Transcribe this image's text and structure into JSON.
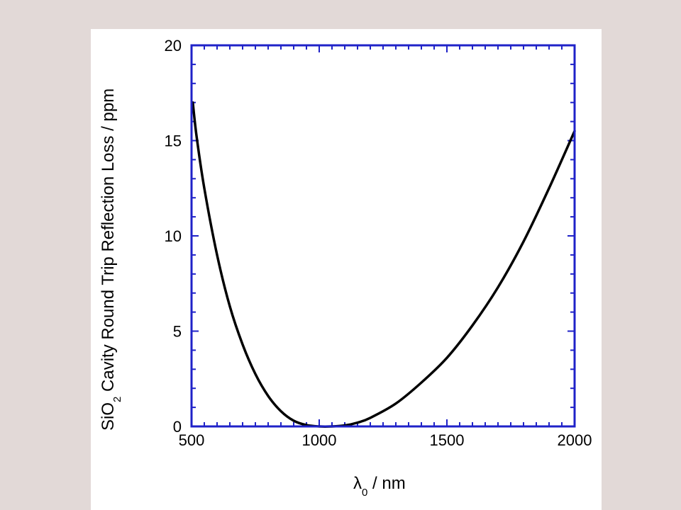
{
  "chart_data": {
    "type": "line",
    "title": "",
    "xlabel": {
      "symbol": "λ",
      "subscript": "0",
      "suffix": " / nm"
    },
    "ylabel": {
      "prefix": "SiO",
      "subscript": "2",
      "suffix": " Cavity Round Trip Reflection Loss / ppm"
    },
    "xlim": [
      500,
      2000
    ],
    "ylim": [
      0,
      20
    ],
    "x_ticks": [
      500,
      1000,
      1500,
      2000
    ],
    "y_ticks": [
      0,
      5,
      10,
      15,
      20
    ],
    "x_tick_labels": [
      "500",
      "1000",
      "1500",
      "2000"
    ],
    "y_tick_labels": [
      "0",
      "5",
      "10",
      "15",
      "20"
    ],
    "grid": false,
    "frame_color": "#1f22c8",
    "series": [
      {
        "color": "#000000",
        "x": [
          505,
          520,
          550,
          600,
          650,
          700,
          750,
          800,
          850,
          900,
          950,
          1000,
          1050,
          1100,
          1150,
          1200,
          1300,
          1400,
          1500,
          1600,
          1700,
          1800,
          1900,
          2000
        ],
        "y": [
          17.0,
          15.2,
          12.5,
          9.0,
          6.3,
          4.3,
          2.75,
          1.6,
          0.8,
          0.3,
          0.07,
          0.0,
          0.0,
          0.05,
          0.2,
          0.45,
          1.2,
          2.3,
          3.6,
          5.3,
          7.3,
          9.7,
          12.5,
          15.5
        ]
      }
    ]
  }
}
